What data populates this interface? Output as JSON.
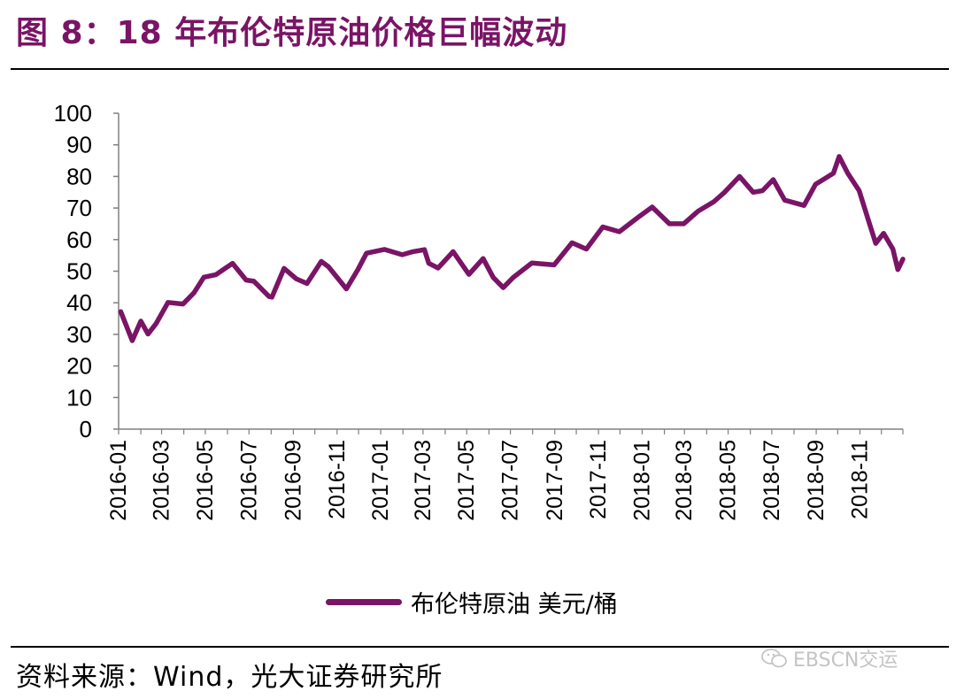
{
  "figure": {
    "title": "图 8：18 年布伦特原油价格巨幅波动",
    "source": "资料来源：Wind，光大证券研究所",
    "watermark": "EBSCN交运"
  },
  "colors": {
    "accent": "#7a1466",
    "line": "#7a1466",
    "watermark": "#c4c4c4"
  },
  "chart_data": {
    "type": "line",
    "title": "图 8：18 年布伦特原油价格巨幅波动",
    "xlabel": "",
    "ylabel": "",
    "ylim": [
      0,
      100
    ],
    "y_ticks": [
      0,
      10,
      20,
      30,
      40,
      50,
      60,
      70,
      80,
      90,
      100
    ],
    "x_range": [
      "2016-01",
      "2018-12"
    ],
    "x_tick_labels": [
      "2016-01",
      "2016-03",
      "2016-05",
      "2016-07",
      "2016-09",
      "2016-11",
      "2017-01",
      "2017-03",
      "2017-05",
      "2017-07",
      "2017-09",
      "2017-11",
      "2018-01",
      "2018-03",
      "2018-05",
      "2018-07",
      "2018-09",
      "2018-11"
    ],
    "grid": false,
    "legend_position": "bottom",
    "series": [
      {
        "name": "布伦特原油 美元/桶",
        "color": "#7a1466",
        "points": [
          [
            "2016-01-04",
            37.2
          ],
          [
            "2016-01-20",
            28.0
          ],
          [
            "2016-02-01",
            34.2
          ],
          [
            "2016-02-11",
            30.1
          ],
          [
            "2016-02-22",
            33.3
          ],
          [
            "2016-03-10",
            40.1
          ],
          [
            "2016-03-31",
            39.6
          ],
          [
            "2016-04-15",
            43.1
          ],
          [
            "2016-04-29",
            48.1
          ],
          [
            "2016-05-16",
            48.9
          ],
          [
            "2016-06-08",
            52.5
          ],
          [
            "2016-06-27",
            47.2
          ],
          [
            "2016-07-08",
            46.8
          ],
          [
            "2016-07-29",
            42.0
          ],
          [
            "2016-08-02",
            41.8
          ],
          [
            "2016-08-19",
            50.9
          ],
          [
            "2016-09-05",
            47.6
          ],
          [
            "2016-09-20",
            46.1
          ],
          [
            "2016-10-10",
            53.1
          ],
          [
            "2016-10-20",
            51.4
          ],
          [
            "2016-11-14",
            44.4
          ],
          [
            "2016-11-30",
            50.5
          ],
          [
            "2016-12-12",
            55.7
          ],
          [
            "2017-01-06",
            56.9
          ],
          [
            "2017-01-31",
            55.2
          ],
          [
            "2017-02-15",
            56.2
          ],
          [
            "2017-03-03",
            56.8
          ],
          [
            "2017-03-09",
            52.5
          ],
          [
            "2017-03-22",
            51.0
          ],
          [
            "2017-04-12",
            56.2
          ],
          [
            "2017-05-04",
            49.0
          ],
          [
            "2017-05-24",
            54.0
          ],
          [
            "2017-06-07",
            48.0
          ],
          [
            "2017-06-21",
            44.8
          ],
          [
            "2017-07-05",
            48.0
          ],
          [
            "2017-07-31",
            52.6
          ],
          [
            "2017-08-31",
            52.0
          ],
          [
            "2017-09-25",
            59.0
          ],
          [
            "2017-10-15",
            57.0
          ],
          [
            "2017-11-07",
            64.0
          ],
          [
            "2017-11-30",
            62.5
          ],
          [
            "2017-12-26",
            67.0
          ],
          [
            "2018-01-15",
            70.3
          ],
          [
            "2018-02-08",
            65.0
          ],
          [
            "2018-02-28",
            65.0
          ],
          [
            "2018-03-20",
            69.0
          ],
          [
            "2018-04-11",
            72.0
          ],
          [
            "2018-04-26",
            75.0
          ],
          [
            "2018-05-17",
            80.0
          ],
          [
            "2018-06-05",
            75.0
          ],
          [
            "2018-06-18",
            75.5
          ],
          [
            "2018-07-03",
            79.0
          ],
          [
            "2018-07-19",
            72.5
          ],
          [
            "2018-08-15",
            70.8
          ],
          [
            "2018-08-31",
            77.5
          ],
          [
            "2018-09-25",
            81.0
          ],
          [
            "2018-10-03",
            86.3
          ],
          [
            "2018-10-15",
            81.0
          ],
          [
            "2018-10-31",
            75.5
          ],
          [
            "2018-11-13",
            66.0
          ],
          [
            "2018-11-23",
            58.8
          ],
          [
            "2018-12-04",
            62.0
          ],
          [
            "2018-12-17",
            57.0
          ],
          [
            "2018-12-24",
            50.5
          ],
          [
            "2018-12-31",
            53.8
          ]
        ]
      }
    ]
  }
}
